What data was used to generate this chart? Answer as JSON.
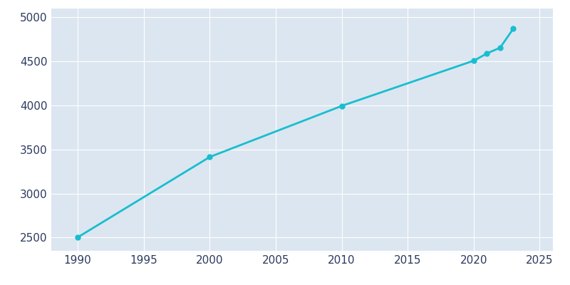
{
  "years": [
    1990,
    2000,
    2010,
    2020,
    2021,
    2022,
    2023
  ],
  "population": [
    2503,
    3415,
    3995,
    4507,
    4591,
    4655,
    4872
  ],
  "line_color": "#17BECF",
  "marker_color": "#17BECF",
  "plot_bg_color": "#DCE6F0",
  "fig_bg_color": "#ffffff",
  "grid_color": "#ffffff",
  "tick_color": "#2d3a5f",
  "xlim": [
    1988,
    2026
  ],
  "ylim": [
    2350,
    5100
  ],
  "xticks": [
    1990,
    1995,
    2000,
    2005,
    2010,
    2015,
    2020,
    2025
  ],
  "yticks": [
    2500,
    3000,
    3500,
    4000,
    4500,
    5000
  ],
  "linewidth": 2.0,
  "markersize": 5,
  "tick_fontsize": 11
}
